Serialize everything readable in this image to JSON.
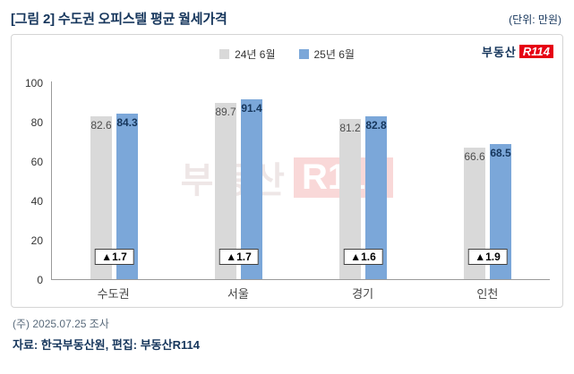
{
  "header": {
    "title": "[그림 2] 수도권 오피스텔 평균 월세가격",
    "unit": "(단위: 만원)"
  },
  "logo": {
    "text": "부동산",
    "badge": "R114"
  },
  "watermark": {
    "text": "부동산",
    "badge": "R114"
  },
  "footer": {
    "note": "(주) 2025.07.25 조사",
    "source": "자료: 한국부동산원, 편집: 부동산R114"
  },
  "colors": {
    "series1": "#d9d9d9",
    "series2": "#7ba7d9",
    "accent": "#16365c",
    "logo_red": "#e60013"
  },
  "chart_data": {
    "type": "bar",
    "title": "[그림 2] 수도권 오피스텔 평균 월세가격",
    "unit": "만원",
    "categories": [
      "수도권",
      "서울",
      "경기",
      "인천"
    ],
    "series": [
      {
        "name": "24년 6월",
        "values": [
          82.6,
          89.7,
          81.2,
          66.6
        ]
      },
      {
        "name": "25년 6월",
        "values": [
          84.3,
          91.4,
          82.8,
          68.5
        ]
      }
    ],
    "changes": [
      "▲1.7",
      "▲1.7",
      "▲1.6",
      "▲1.9"
    ],
    "ylim": [
      0,
      100
    ],
    "yticks": [
      0,
      20,
      40,
      60,
      80,
      100
    ],
    "grid": false,
    "legend_position": "top-center"
  }
}
